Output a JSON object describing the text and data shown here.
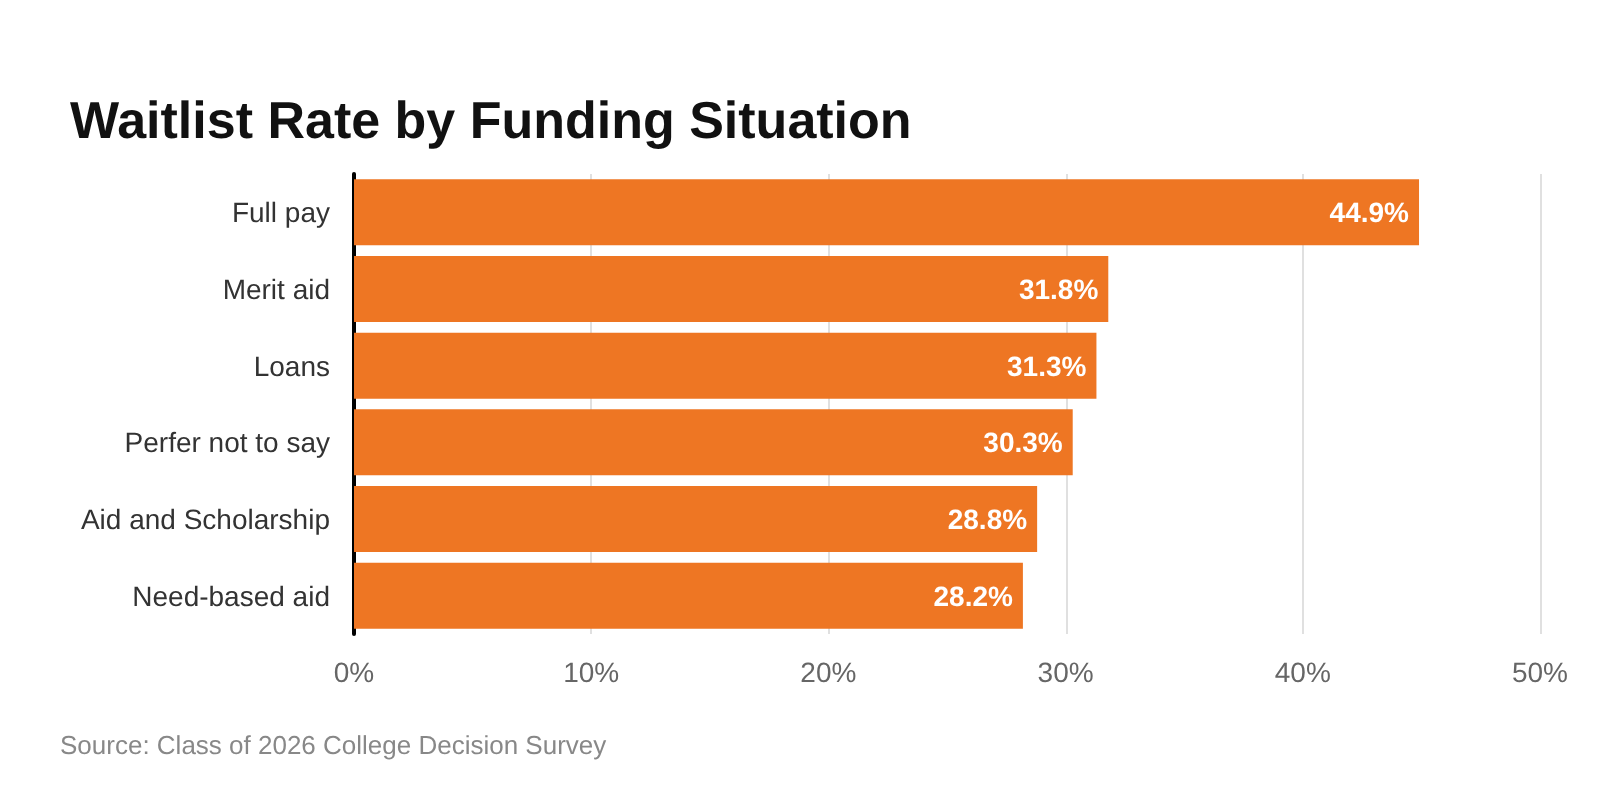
{
  "chart_data": {
    "type": "bar",
    "orientation": "horizontal",
    "title": "Waitlist Rate by Funding Situation",
    "categories": [
      "Full pay",
      "Merit aid",
      "Loans",
      "Perfer not to say",
      "Aid and Scholarship",
      "Need-based aid"
    ],
    "values": [
      44.9,
      31.8,
      31.3,
      30.3,
      28.8,
      28.2
    ],
    "value_labels": [
      "44.9%",
      "31.8%",
      "31.3%",
      "30.3%",
      "28.8%",
      "28.2%"
    ],
    "color": "#ee7623",
    "xlim": [
      0,
      50
    ],
    "xticks": [
      {
        "value": 0,
        "label": "0%"
      },
      {
        "value": 10,
        "label": "10%"
      },
      {
        "value": 20,
        "label": "20%"
      },
      {
        "value": 30,
        "label": "30%"
      },
      {
        "value": 40,
        "label": "40%"
      },
      {
        "value": 50,
        "label": "50%"
      }
    ],
    "grid": "x",
    "annotations": [
      "Source: Class of 2026 College Decision Survey"
    ]
  }
}
